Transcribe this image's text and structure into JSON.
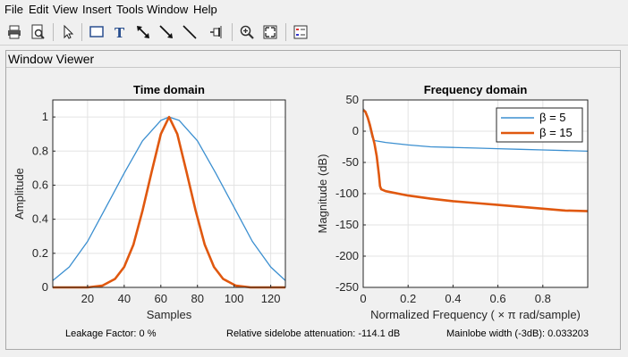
{
  "menu": [
    "File",
    "Edit",
    "View",
    "Insert",
    "Tools",
    "Window",
    "Help"
  ],
  "toolbar_icons": [
    "print-icon",
    "print-preview-icon",
    "select-arrow-icon",
    "rectangle-icon",
    "text-icon",
    "double-arrow-icon",
    "arrow-icon",
    "line-icon",
    "pin-icon",
    "zoom-in-icon",
    "fit-to-view-icon",
    "legend-icon"
  ],
  "panel": {
    "title": "Window Viewer"
  },
  "status": {
    "leakage": "Leakage Factor: 0 %",
    "sidelobe": "Relative sidelobe attenuation: -114.1 dB",
    "mainlobe": "Mainlobe width (-3dB): 0.033203"
  },
  "colors": {
    "beta5": "#3b8fd0",
    "beta15": "#e0580f",
    "grid": "#e3e3e3"
  },
  "chart_data": [
    {
      "type": "line",
      "title": "Time domain",
      "xlabel": "Samples",
      "ylabel": "Amplitude",
      "xlim": [
        1,
        128
      ],
      "ylim": [
        0,
        1.1
      ],
      "xticks": [
        20,
        40,
        60,
        80,
        100,
        120
      ],
      "yticks": [
        0,
        0.2,
        0.4,
        0.6,
        0.8,
        1
      ],
      "grid": true,
      "series": [
        {
          "color": "#3b8fd0",
          "x": [
            1,
            10,
            20,
            30,
            40,
            50,
            60,
            64.5,
            70,
            80,
            90,
            100,
            110,
            120,
            128
          ],
          "y": [
            0.04,
            0.12,
            0.27,
            0.47,
            0.67,
            0.86,
            0.98,
            1.0,
            0.98,
            0.86,
            0.67,
            0.47,
            0.27,
            0.12,
            0.04
          ]
        },
        {
          "color": "#e0580f",
          "x": [
            1,
            20,
            28,
            35,
            40,
            45,
            50,
            55,
            60,
            64.5,
            69,
            74,
            79,
            84,
            89,
            94,
            101,
            109,
            128
          ],
          "y": [
            0.0,
            0.0,
            0.01,
            0.05,
            0.12,
            0.25,
            0.45,
            0.68,
            0.9,
            1.0,
            0.9,
            0.68,
            0.45,
            0.25,
            0.12,
            0.05,
            0.01,
            0.0,
            0.0
          ]
        }
      ]
    },
    {
      "type": "line",
      "title": "Frequency domain",
      "xlabel": "Normalized Frequency  ( × π rad/sample)",
      "ylabel": "Magnitude (dB)",
      "xlim": [
        0,
        1
      ],
      "ylim": [
        -250,
        50
      ],
      "xticks": [
        0,
        0.2,
        0.4,
        0.6,
        0.8
      ],
      "yticks": [
        -250,
        -200,
        -150,
        -100,
        -50,
        0,
        50
      ],
      "grid": true,
      "legend": {
        "position": "top-right",
        "entries": [
          "β = 5",
          "β = 15"
        ]
      },
      "series": [
        {
          "name": "β = 5",
          "color": "#3b8fd0",
          "x": [
            0,
            0.01,
            0.02,
            0.03,
            0.04,
            0.05,
            0.1,
            0.2,
            0.3,
            0.4,
            0.5,
            0.6,
            0.7,
            0.8,
            0.9,
            1.0
          ],
          "y": [
            36,
            32,
            20,
            5,
            -10,
            -15,
            -18,
            -22,
            -25,
            -26,
            -27,
            -28,
            -29,
            -30,
            -31,
            -32
          ]
        },
        {
          "name": "β = 15",
          "color": "#e0580f",
          "x": [
            0,
            0.01,
            0.02,
            0.03,
            0.04,
            0.05,
            0.06,
            0.07,
            0.075,
            0.08,
            0.1,
            0.2,
            0.3,
            0.4,
            0.5,
            0.6,
            0.7,
            0.8,
            0.9,
            1.0
          ],
          "y": [
            34,
            31,
            22,
            10,
            -5,
            -20,
            -40,
            -70,
            -88,
            -93,
            -96,
            -103,
            -108,
            -112,
            -115,
            -118,
            -121,
            -124,
            -127,
            -128
          ]
        }
      ]
    }
  ]
}
